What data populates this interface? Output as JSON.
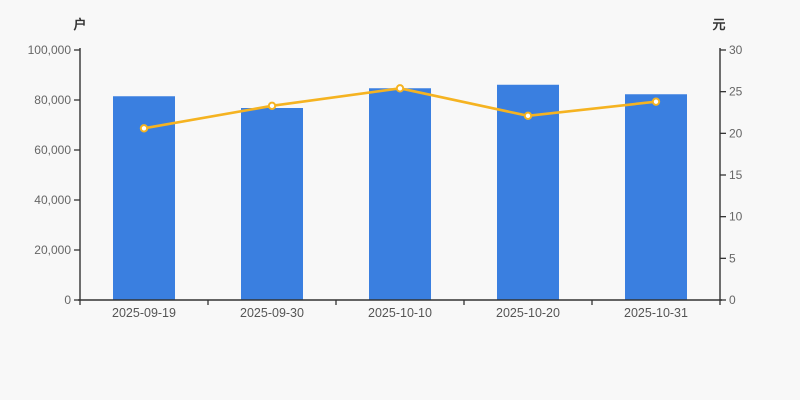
{
  "page": {
    "background": "#f8f8f8"
  },
  "chart_data": {
    "type": "bar",
    "categories": [
      "2025-09-19",
      "2025-09-30",
      "2025-10-10",
      "2025-10-20",
      "2025-10-31"
    ],
    "series": [
      {
        "type": "bar",
        "axis": "left",
        "values": [
          81500,
          76800,
          84700,
          86100,
          82300
        ],
        "color": "#3a7fe0"
      },
      {
        "type": "line",
        "axis": "right",
        "values": [
          20.6,
          23.3,
          25.4,
          22.1,
          23.8
        ],
        "color": "#f5b321",
        "marker_fill": "#ffffff"
      }
    ],
    "left_axis": {
      "title": "户",
      "min": 0,
      "max": 100000,
      "tick_labels": [
        "0",
        "20,000",
        "40,000",
        "60,000",
        "80,000",
        "100,000"
      ]
    },
    "right_axis": {
      "title": "元",
      "min": 0,
      "max": 30,
      "tick_labels": [
        "0",
        "5",
        "10",
        "15",
        "20",
        "25",
        "30"
      ]
    },
    "grid": false,
    "legend": false,
    "style": {
      "axis_line_color": "#333333",
      "tick_label_color": "#666666",
      "date_label_color": "#555555",
      "background": "#f8f8f8"
    }
  }
}
